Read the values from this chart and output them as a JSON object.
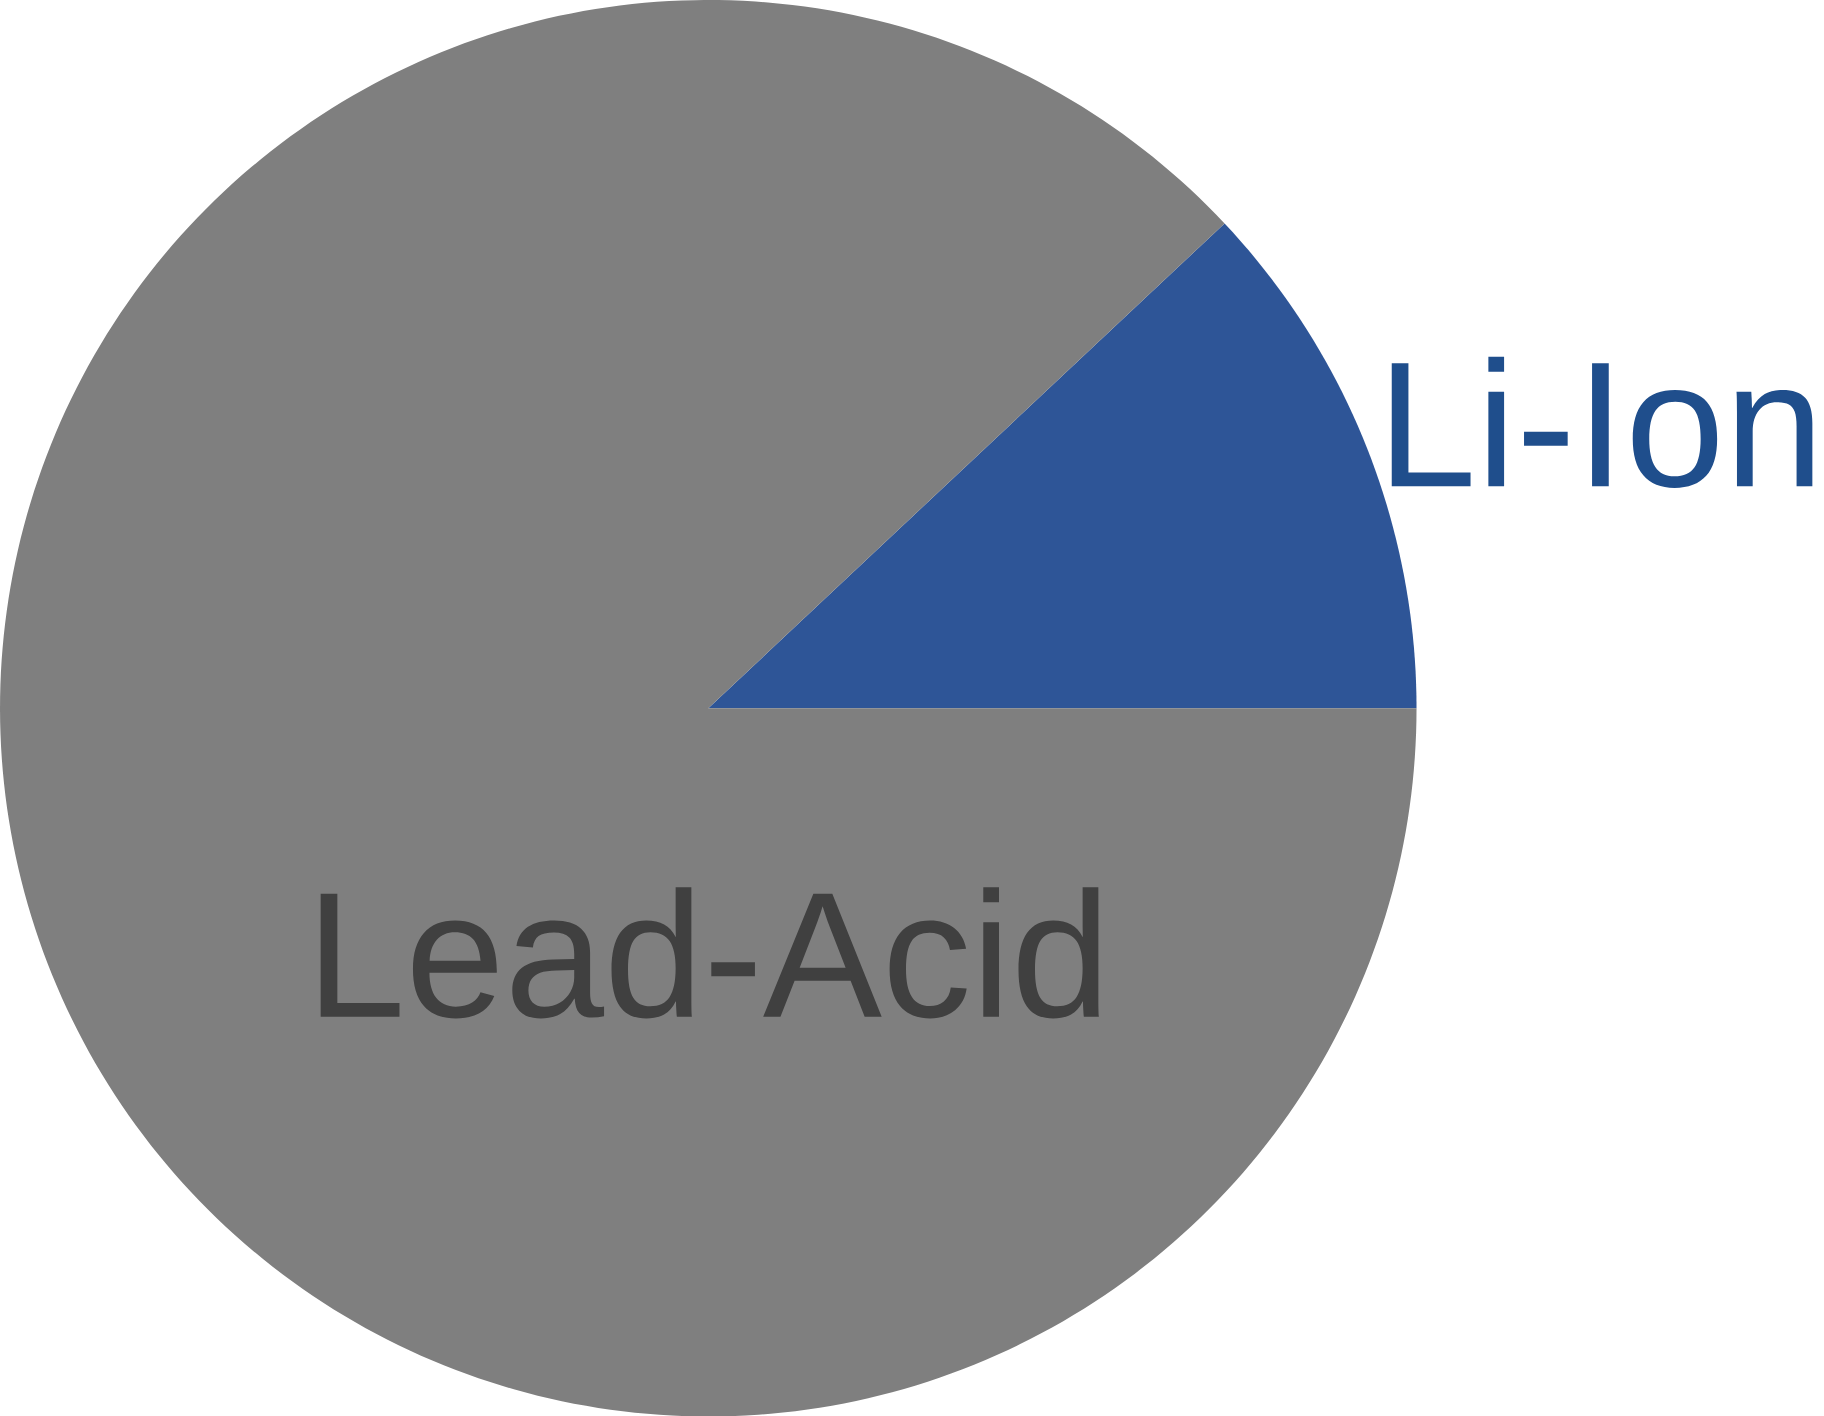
{
  "chart_data": {
    "type": "pie",
    "categories": [
      "Li-Ion",
      "Lead-Acid"
    ],
    "values": [
      12,
      88
    ],
    "colors": [
      "#2e5597",
      "#7f7f7f"
    ]
  }
}
